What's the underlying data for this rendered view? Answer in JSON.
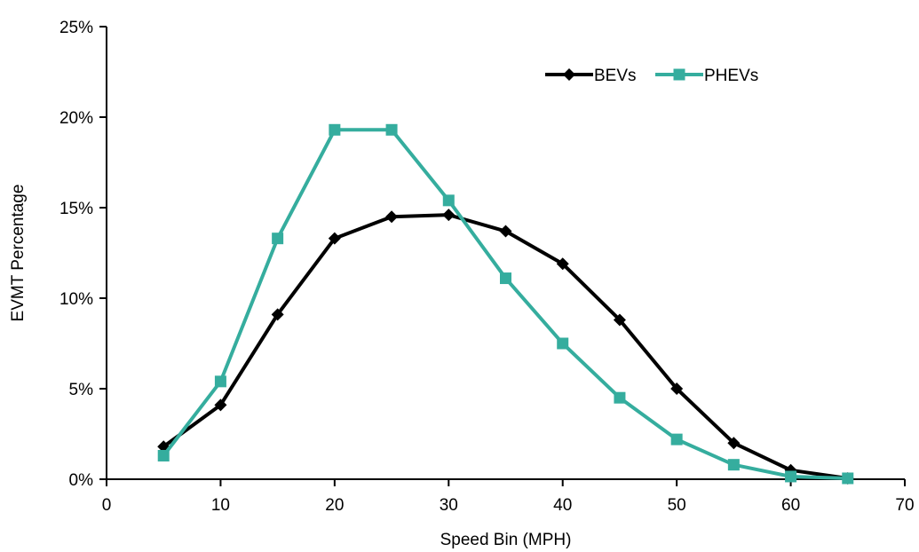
{
  "chart_data": {
    "type": "line",
    "xlabel": "Speed Bin (MPH)",
    "ylabel": "EVMT Percentage",
    "xlim": [
      0,
      70
    ],
    "ylim": [
      0,
      25
    ],
    "x_ticks": [
      0,
      10,
      20,
      30,
      40,
      50,
      60,
      70
    ],
    "y_ticks": [
      0,
      5,
      10,
      15,
      20,
      25
    ],
    "y_tick_labels": [
      "0%",
      "5%",
      "10%",
      "15%",
      "20%",
      "25%"
    ],
    "x_tick_labels": [
      "0",
      "10",
      "20",
      "30",
      "40",
      "50",
      "60",
      "70"
    ],
    "grid": false,
    "legend_position": "top-right",
    "x": [
      5,
      10,
      15,
      20,
      25,
      30,
      35,
      40,
      45,
      50,
      55,
      60,
      65
    ],
    "series": [
      {
        "name": "BEVs",
        "color": "#000000",
        "marker": "diamond",
        "values": [
          1.8,
          4.1,
          9.1,
          13.3,
          14.5,
          14.6,
          13.7,
          11.9,
          8.8,
          5.0,
          2.0,
          0.5,
          0.05
        ]
      },
      {
        "name": "PHEVs",
        "color": "#35ad9e",
        "marker": "square",
        "values": [
          1.3,
          5.4,
          13.3,
          19.3,
          19.3,
          15.4,
          11.1,
          7.5,
          4.5,
          2.2,
          0.8,
          0.15,
          0.05
        ]
      }
    ]
  }
}
